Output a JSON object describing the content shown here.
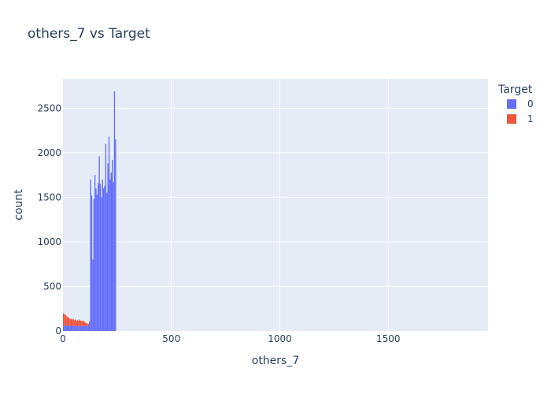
{
  "chart_data": {
    "type": "bar",
    "title": "others_7 vs Target",
    "xlabel": "others_7",
    "ylabel": "count",
    "xlim": [
      0,
      1960
    ],
    "ylim": [
      0,
      2830
    ],
    "xticks": [
      0,
      500,
      1000,
      1500
    ],
    "yticks": [
      0,
      500,
      1000,
      1500,
      2000,
      2500
    ],
    "grid": true,
    "legend": {
      "title": "Target",
      "placement": "top-right, outside plot"
    },
    "bin_width": 5,
    "series": [
      {
        "name": "0",
        "color": "#636efa",
        "x": [
          0,
          5,
          10,
          15,
          20,
          25,
          30,
          35,
          40,
          45,
          50,
          55,
          60,
          65,
          70,
          75,
          80,
          85,
          90,
          95,
          100,
          105,
          110,
          115,
          120,
          125,
          130,
          135,
          140,
          145,
          150,
          155,
          160,
          165,
          170,
          175,
          180,
          185,
          190,
          195,
          200,
          205,
          210,
          215,
          220,
          225,
          230,
          235,
          240
        ],
        "values": [
          60,
          55,
          70,
          65,
          60,
          58,
          55,
          62,
          57,
          60,
          55,
          58,
          52,
          56,
          60,
          58,
          55,
          53,
          57,
          60,
          56,
          60,
          58,
          62,
          100,
          1700,
          1520,
          800,
          1480,
          1750,
          1600,
          1530,
          1660,
          1960,
          1650,
          1500,
          1700,
          1600,
          1630,
          2100,
          1550,
          1880,
          2180,
          1700,
          1780,
          1920,
          1670,
          2690,
          2150
        ]
      },
      {
        "name": "1",
        "color": "#ef553b",
        "x": [
          0,
          5,
          10,
          15,
          20,
          25,
          30,
          35,
          40,
          45,
          50,
          55,
          60,
          65,
          70,
          75,
          80,
          85,
          90,
          95,
          100,
          105,
          110,
          115,
          120
        ],
        "values": [
          140,
          130,
          110,
          100,
          95,
          90,
          80,
          75,
          70,
          75,
          65,
          70,
          60,
          65,
          55,
          70,
          60,
          55,
          60,
          50,
          40,
          30,
          25,
          20,
          10
        ]
      }
    ]
  }
}
